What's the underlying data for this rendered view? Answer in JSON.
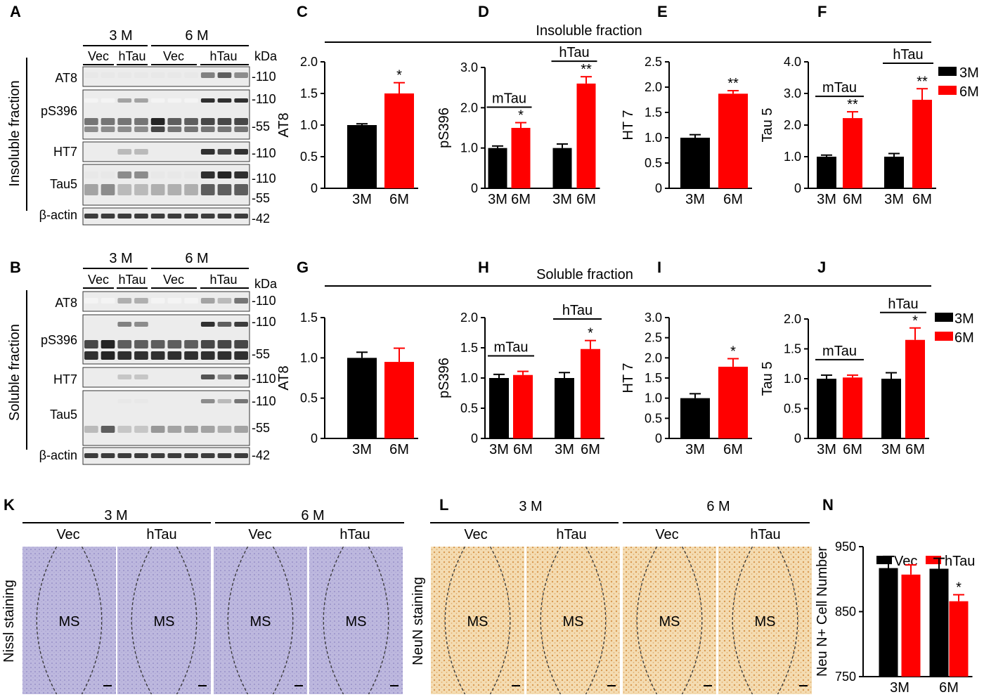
{
  "panels": [
    "A",
    "B",
    "C",
    "D",
    "E",
    "F",
    "G",
    "H",
    "I",
    "J",
    "K",
    "L",
    "N"
  ],
  "blot_A": {
    "groups": [
      "3 M",
      "6 M"
    ],
    "conds": [
      "Vec",
      "hTau",
      "Vec",
      "hTau"
    ],
    "kda": "kDa",
    "side": "Insoluble fraction",
    "rows": [
      {
        "name": "AT8",
        "marks": [
          "-110"
        ]
      },
      {
        "name": "pS396",
        "marks": [
          "-110",
          "-55"
        ]
      },
      {
        "name": "HT7",
        "marks": [
          "-110"
        ]
      },
      {
        "name": "Tau5",
        "marks": [
          "-110",
          "-55"
        ]
      },
      {
        "name": "β-actin",
        "marks": [
          "-42"
        ]
      }
    ]
  },
  "blot_B": {
    "groups": [
      "3 M",
      "6 M"
    ],
    "conds": [
      "Vec",
      "hTau",
      "Vec",
      "hTau"
    ],
    "kda": "kDa",
    "side": "Soluble fraction",
    "rows": [
      {
        "name": "AT8",
        "marks": [
          "-110"
        ]
      },
      {
        "name": "pS396",
        "marks": [
          "-110",
          "-55"
        ]
      },
      {
        "name": "HT7",
        "marks": [
          "-110"
        ]
      },
      {
        "name": "Tau5",
        "marks": [
          "-110",
          "-55"
        ]
      },
      {
        "name": "β-actin",
        "marks": [
          "-42"
        ]
      }
    ]
  },
  "fraction_titles": {
    "top": "Insoluble fraction",
    "bottom": "Soluble fraction"
  },
  "legend": {
    "s1": "3M",
    "s2": "6M",
    "color1": "#000000",
    "color2": "#ff0000"
  },
  "chart_data": [
    {
      "panel": "C",
      "type": "bar",
      "ylabel": "AT8",
      "ylim": [
        0,
        2.0
      ],
      "yticks": [
        "0",
        "0.5",
        "1.0",
        "1.5",
        "2.0"
      ],
      "categories": [
        "3M",
        "6M"
      ],
      "values": [
        1.0,
        1.5
      ],
      "errors": [
        0.02,
        0.17
      ],
      "sig": [
        "",
        "*"
      ]
    },
    {
      "panel": "D",
      "type": "bar",
      "ylabel": "pS396",
      "ylim": [
        0,
        3.0
      ],
      "yticks": [
        "0",
        "1.0",
        "2.0",
        "3.0"
      ],
      "categories": [
        "3M",
        "6M",
        "3M",
        "6M"
      ],
      "values": [
        1.0,
        1.5,
        1.0,
        2.6
      ],
      "errors": [
        0.05,
        0.13,
        0.1,
        0.17
      ],
      "sig": [
        "",
        "*",
        "",
        "**"
      ],
      "group_labels": [
        "mTau",
        "hTau"
      ]
    },
    {
      "panel": "E",
      "type": "bar",
      "ylabel": "HT 7",
      "ylim": [
        0,
        2.5
      ],
      "yticks": [
        "0",
        "0.5",
        "1.0",
        "1.5",
        "2.0",
        "2.5"
      ],
      "categories": [
        "3M",
        "6M"
      ],
      "values": [
        1.0,
        1.87
      ],
      "errors": [
        0.06,
        0.06
      ],
      "sig": [
        "",
        "**"
      ]
    },
    {
      "panel": "F",
      "type": "bar",
      "ylabel": "Tau 5",
      "ylim": [
        0,
        4.0
      ],
      "yticks": [
        "0",
        "1.0",
        "2.0",
        "3.0",
        "4.0"
      ],
      "categories": [
        "3M",
        "6M",
        "3M",
        "6M"
      ],
      "values": [
        1.0,
        2.22,
        1.0,
        2.8
      ],
      "errors": [
        0.05,
        0.2,
        0.1,
        0.35
      ],
      "sig": [
        "",
        "**",
        "",
        "**"
      ],
      "group_labels": [
        "mTau",
        "hTau"
      ]
    },
    {
      "panel": "G",
      "type": "bar",
      "ylabel": "AT8",
      "ylim": [
        0,
        1.5
      ],
      "yticks": [
        "0",
        "0.5",
        "1.0",
        "1.5"
      ],
      "categories": [
        "3M",
        "6M"
      ],
      "values": [
        1.0,
        0.95
      ],
      "errors": [
        0.07,
        0.17
      ],
      "sig": [
        "",
        ""
      ]
    },
    {
      "panel": "H",
      "type": "bar",
      "ylabel": "pS396",
      "ylim": [
        0,
        2.0
      ],
      "yticks": [
        "0",
        "0.5",
        "1.0",
        "1.5",
        "2.0"
      ],
      "categories": [
        "3M",
        "6M",
        "3M",
        "6M"
      ],
      "values": [
        1.0,
        1.05,
        1.0,
        1.48
      ],
      "errors": [
        0.06,
        0.06,
        0.09,
        0.14
      ],
      "sig": [
        "",
        "",
        "",
        "*"
      ],
      "group_labels": [
        "mTau",
        "hTau"
      ]
    },
    {
      "panel": "I",
      "type": "bar",
      "ylabel": "HT 7",
      "ylim": [
        0,
        3.0
      ],
      "yticks": [
        "0",
        "0.5",
        "1.0",
        "1.5",
        "2.0",
        "2.5",
        "3.0"
      ],
      "categories": [
        "3M",
        "6M"
      ],
      "values": [
        1.0,
        1.78
      ],
      "errors": [
        0.11,
        0.2
      ],
      "sig": [
        "",
        "*"
      ]
    },
    {
      "panel": "J",
      "type": "bar",
      "ylabel": "Tau 5",
      "ylim": [
        0,
        2.0
      ],
      "yticks": [
        "0",
        "0.5",
        "1.0",
        "1.5",
        "2.0"
      ],
      "categories": [
        "3M",
        "6M",
        "3M",
        "6M"
      ],
      "values": [
        1.0,
        1.02,
        1.0,
        1.65
      ],
      "errors": [
        0.06,
        0.04,
        0.1,
        0.2
      ],
      "sig": [
        "",
        "",
        "",
        "*"
      ],
      "group_labels": [
        "mTau",
        "hTau"
      ]
    },
    {
      "panel": "N",
      "type": "bar",
      "ylabel": "Neu N+ Cell Number",
      "ylim": [
        750,
        950
      ],
      "yticks": [
        "750",
        "850",
        "950"
      ],
      "categories": [
        "3M",
        "6M"
      ],
      "series": [
        {
          "name": "Vec",
          "values": [
            917,
            916
          ],
          "errors": [
            18,
            16
          ]
        },
        {
          "name": "hTau",
          "values": [
            907,
            866
          ],
          "errors": [
            15,
            10
          ]
        }
      ],
      "sig": [
        "",
        "",
        "",
        "*"
      ]
    }
  ],
  "histology_K": {
    "groups": [
      "3 M",
      "6 M"
    ],
    "conds": [
      "Vec",
      "hTau",
      "Vec",
      "hTau"
    ],
    "region": "MS",
    "side": "Nissl staining",
    "color": "#b9b4dc"
  },
  "histology_L": {
    "groups": [
      "3 M",
      "6 M"
    ],
    "conds": [
      "Vec",
      "hTau",
      "Vec",
      "hTau"
    ],
    "region": "MS",
    "side": "NeuN staining",
    "color": "#f1d4a6"
  }
}
